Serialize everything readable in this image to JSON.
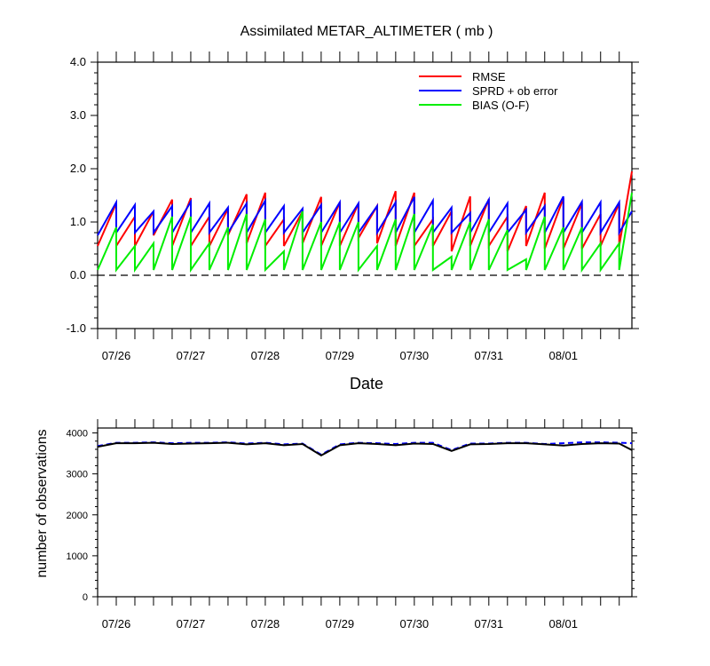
{
  "colors": {
    "rmse": "#ff0000",
    "sprd": "#0000ff",
    "bias": "#00ee00",
    "obs_assim": "#000000",
    "obs_total": "#0000ff",
    "zero_line": "#000000"
  },
  "chart_data": [
    {
      "type": "line",
      "title": "Assimilated METAR_ALTIMETER ( mb )",
      "xlabel": "Date",
      "ylabel": "",
      "xlim": [
        0,
        7.17
      ],
      "ylim": [
        -1.0,
        4.0
      ],
      "yticks": [
        -1.0,
        0.0,
        1.0,
        2.0,
        3.0,
        4.0
      ],
      "ytick_labels": [
        "-1.0",
        "0.0",
        "1.0",
        "2.0",
        "3.0",
        "4.0"
      ],
      "xtick_labels": [
        "07/26",
        "07/27",
        "07/28",
        "07/29",
        "07/30",
        "07/31",
        "08/01"
      ],
      "xtick_positions": [
        0.25,
        1.25,
        2.25,
        3.25,
        4.25,
        5.25,
        6.25
      ],
      "x_units": "days after 07/25 18Z",
      "reference_line": 0.0,
      "legend_position": "top-right",
      "series": [
        {
          "name": "RMSE",
          "color_key": "rmse",
          "x": [
            0.0,
            0.25,
            0.25,
            0.5,
            0.5,
            0.75,
            0.75,
            1.0,
            1.0,
            1.25,
            1.25,
            1.5,
            1.5,
            1.75,
            1.75,
            2.0,
            2.0,
            2.25,
            2.25,
            2.5,
            2.5,
            2.75,
            2.75,
            3.0,
            3.0,
            3.25,
            3.25,
            3.5,
            3.5,
            3.75,
            3.75,
            4.0,
            4.0,
            4.25,
            4.25,
            4.5,
            4.5,
            4.75,
            4.75,
            5.0,
            5.0,
            5.25,
            5.25,
            5.5,
            5.5,
            5.75,
            5.75,
            6.0,
            6.0,
            6.25,
            6.25,
            6.5,
            6.5,
            6.75,
            6.75,
            7.0,
            7.0,
            7.17
          ],
          "values": [
            0.55,
            1.35,
            0.55,
            1.1,
            0.55,
            1.2,
            0.75,
            1.42,
            0.55,
            1.45,
            0.55,
            1.1,
            0.55,
            1.25,
            0.75,
            1.52,
            0.6,
            1.55,
            0.55,
            1.05,
            0.55,
            1.2,
            0.6,
            1.47,
            0.55,
            1.37,
            0.55,
            1.35,
            0.7,
            1.3,
            0.6,
            1.58,
            0.55,
            1.55,
            0.55,
            1.05,
            0.55,
            1.2,
            0.45,
            1.48,
            0.55,
            1.43,
            0.55,
            1.1,
            0.45,
            1.3,
            0.55,
            1.55,
            0.5,
            1.45,
            0.5,
            1.35,
            0.5,
            1.15,
            0.55,
            1.35,
            0.55,
            1.95
          ]
        },
        {
          "name": "SPRD + ob error",
          "color_key": "sprd",
          "x": [
            0.0,
            0.25,
            0.25,
            0.5,
            0.5,
            0.75,
            0.75,
            1.0,
            1.0,
            1.25,
            1.25,
            1.5,
            1.5,
            1.75,
            1.75,
            2.0,
            2.0,
            2.25,
            2.25,
            2.5,
            2.5,
            2.75,
            2.75,
            3.0,
            3.0,
            3.25,
            3.25,
            3.5,
            3.5,
            3.75,
            3.75,
            4.0,
            4.0,
            4.25,
            4.25,
            4.5,
            4.5,
            4.75,
            4.75,
            5.0,
            5.0,
            5.25,
            5.25,
            5.5,
            5.5,
            5.75,
            5.75,
            6.0,
            6.0,
            6.25,
            6.25,
            6.5,
            6.5,
            6.75,
            6.75,
            7.0,
            7.0,
            7.17
          ],
          "values": [
            0.75,
            1.37,
            0.8,
            1.32,
            0.8,
            1.2,
            0.8,
            1.3,
            0.8,
            1.38,
            0.8,
            1.35,
            0.8,
            1.27,
            0.8,
            1.35,
            0.8,
            1.4,
            0.8,
            1.3,
            0.8,
            1.25,
            0.8,
            1.32,
            0.8,
            1.37,
            0.8,
            1.35,
            0.8,
            1.3,
            0.8,
            1.37,
            0.8,
            1.47,
            0.8,
            1.4,
            0.8,
            1.27,
            0.8,
            1.17,
            0.8,
            1.42,
            0.8,
            1.35,
            0.8,
            1.23,
            0.8,
            1.3,
            0.8,
            1.48,
            0.8,
            1.38,
            0.8,
            1.37,
            0.8,
            1.37,
            0.8,
            1.2
          ]
        },
        {
          "name": "BIAS (O-F)",
          "color_key": "bias",
          "x": [
            0.0,
            0.25,
            0.25,
            0.5,
            0.5,
            0.75,
            0.75,
            1.0,
            1.0,
            1.25,
            1.25,
            1.5,
            1.5,
            1.75,
            1.75,
            2.0,
            2.0,
            2.25,
            2.25,
            2.5,
            2.5,
            2.75,
            2.75,
            3.0,
            3.0,
            3.25,
            3.25,
            3.5,
            3.5,
            3.75,
            3.75,
            4.0,
            4.0,
            4.25,
            4.25,
            4.5,
            4.5,
            4.75,
            4.75,
            5.0,
            5.0,
            5.25,
            5.25,
            5.5,
            5.5,
            5.75,
            5.75,
            6.0,
            6.0,
            6.25,
            6.25,
            6.5,
            6.5,
            6.75,
            6.75,
            7.0,
            7.0,
            7.17
          ],
          "values": [
            0.1,
            0.9,
            0.1,
            0.55,
            0.1,
            0.6,
            0.1,
            1.1,
            0.1,
            1.1,
            0.1,
            0.6,
            0.1,
            0.9,
            0.1,
            1.15,
            0.1,
            1.05,
            0.1,
            0.45,
            0.1,
            1.2,
            0.1,
            1.0,
            0.1,
            1.0,
            0.1,
            1.0,
            0.1,
            0.55,
            0.1,
            1.05,
            0.1,
            1.15,
            0.1,
            0.95,
            0.1,
            0.35,
            0.1,
            1.0,
            0.1,
            1.05,
            0.1,
            0.85,
            0.1,
            0.3,
            0.1,
            1.1,
            0.1,
            0.9,
            0.1,
            0.9,
            0.1,
            0.6,
            0.1,
            0.6,
            0.1,
            1.55
          ]
        }
      ]
    },
    {
      "type": "line",
      "title": "",
      "xlabel": "",
      "ylabel": "number of observations",
      "xlim": [
        0,
        7.17
      ],
      "ylim": [
        0,
        4120
      ],
      "yticks": [
        0,
        1000,
        2000,
        3000,
        4000
      ],
      "ytick_labels": [
        "0",
        "1000",
        "2000",
        "3000",
        "4000"
      ],
      "xtick_labels": [
        "07/26",
        "07/27",
        "07/28",
        "07/29",
        "07/30",
        "07/31",
        "08/01"
      ],
      "xtick_positions": [
        0.25,
        1.25,
        2.25,
        3.25,
        4.25,
        5.25,
        6.25
      ],
      "x_units": "days after 07/25 18Z",
      "series": [
        {
          "color_key": "obs_total",
          "dashed": true,
          "x": [
            0.0,
            0.25,
            0.5,
            0.75,
            1.0,
            1.25,
            1.5,
            1.75,
            2.0,
            2.25,
            2.5,
            2.75,
            3.0,
            3.25,
            3.5,
            3.75,
            4.0,
            4.25,
            4.5,
            4.75,
            5.0,
            5.25,
            5.5,
            5.75,
            6.0,
            6.25,
            6.5,
            6.75,
            7.0,
            7.17
          ],
          "values": [
            3680,
            3760,
            3760,
            3770,
            3750,
            3760,
            3760,
            3770,
            3740,
            3760,
            3720,
            3740,
            3470,
            3720,
            3760,
            3750,
            3730,
            3760,
            3760,
            3580,
            3740,
            3740,
            3760,
            3760,
            3730,
            3750,
            3770,
            3770,
            3760,
            3750
          ]
        },
        {
          "color_key": "obs_assim",
          "dashed": false,
          "x": [
            0.0,
            0.25,
            0.5,
            0.75,
            1.0,
            1.25,
            1.5,
            1.75,
            2.0,
            2.25,
            2.5,
            2.75,
            3.0,
            3.25,
            3.5,
            3.75,
            4.0,
            4.25,
            4.5,
            4.75,
            5.0,
            5.25,
            5.5,
            5.75,
            6.0,
            6.25,
            6.5,
            6.75,
            7.0,
            7.17
          ],
          "values": [
            3660,
            3750,
            3750,
            3760,
            3730,
            3740,
            3750,
            3760,
            3720,
            3750,
            3700,
            3730,
            3450,
            3700,
            3750,
            3730,
            3700,
            3740,
            3730,
            3560,
            3720,
            3730,
            3750,
            3750,
            3720,
            3690,
            3730,
            3750,
            3740,
            3580
          ]
        }
      ]
    }
  ]
}
